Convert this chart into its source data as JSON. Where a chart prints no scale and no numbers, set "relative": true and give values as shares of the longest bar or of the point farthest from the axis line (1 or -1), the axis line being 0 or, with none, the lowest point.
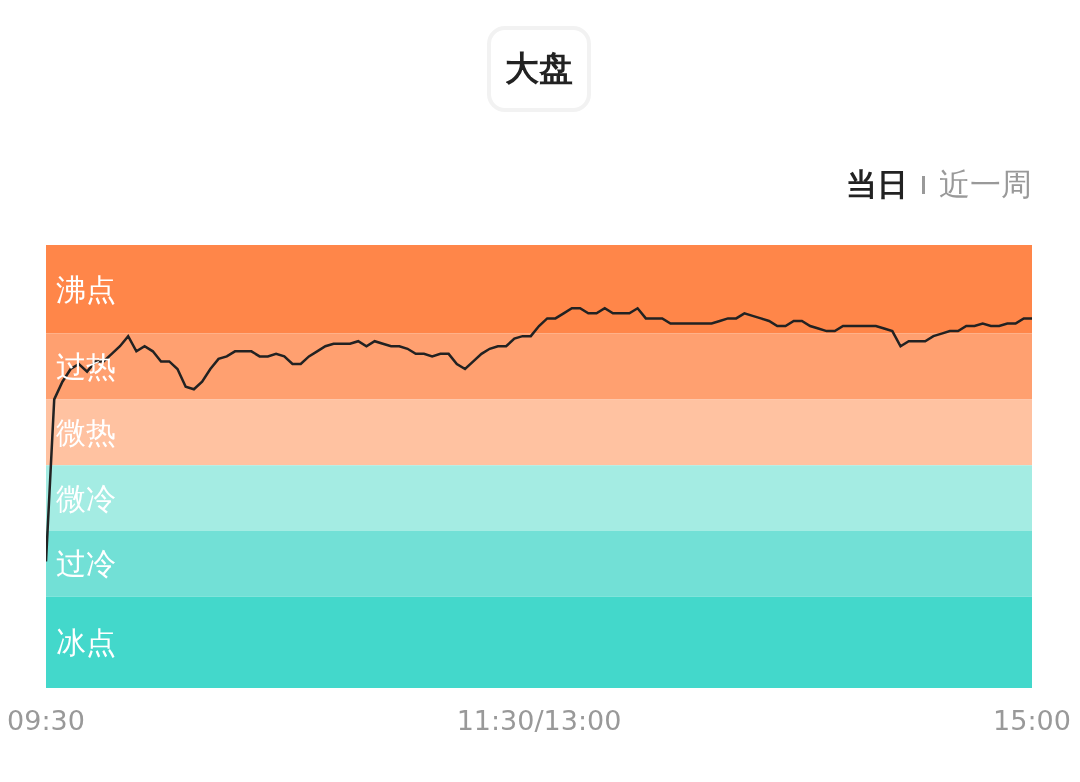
{
  "chart_data": {
    "type": "line",
    "title": "大盘",
    "relative": true,
    "annotations": [
      "当日",
      "近一周"
    ],
    "categories": [
      "09:30",
      null,
      null,
      null,
      null,
      null,
      null,
      null,
      null,
      null,
      null,
      null,
      null,
      null,
      null,
      null,
      null,
      null,
      null,
      null,
      null,
      null,
      null,
      null,
      null,
      null,
      null,
      null,
      null,
      null,
      null,
      null,
      null,
      null,
      null,
      null,
      null,
      null,
      null,
      null,
      null,
      null,
      null,
      null,
      null,
      null,
      null,
      null,
      null,
      null,
      null,
      null,
      null,
      null,
      null,
      null,
      null,
      null,
      null,
      null,
      "11:30/13:00",
      null,
      null,
      null,
      null,
      null,
      null,
      null,
      null,
      null,
      null,
      null,
      null,
      null,
      null,
      null,
      null,
      null,
      null,
      null,
      null,
      null,
      null,
      null,
      null,
      null,
      null,
      null,
      null,
      null,
      null,
      null,
      null,
      null,
      null,
      null,
      null,
      null,
      null,
      null,
      null,
      null,
      null,
      null,
      null,
      null,
      null,
      null,
      null,
      null,
      null,
      null,
      null,
      null,
      null,
      null,
      null,
      null,
      null,
      null,
      "15:00"
    ],
    "grid": false,
    "marker": "none",
    "line_style": "solid",
    "bands": [
      {
        "axis": "y",
        "from": 0.9,
        "to": 1.25,
        "label": "沸点",
        "color": "#ff8649"
      },
      {
        "axis": "y",
        "from": 0.64,
        "to": 0.9,
        "label": "过热",
        "color": "#ffa070"
      },
      {
        "axis": "y",
        "from": 0.38,
        "to": 0.64,
        "label": "微热",
        "color": "#ffc2a1"
      },
      {
        "axis": "y",
        "from": 0.12,
        "to": 0.38,
        "label": "微冷",
        "color": "#a4ece3"
      },
      {
        "axis": "y",
        "from": -0.14,
        "to": 0.12,
        "label": "过冷",
        "color": "#72e0d6"
      },
      {
        "axis": "y",
        "from": -0.5,
        "to": -0.14,
        "label": "冰点",
        "color": "#43d8cb"
      }
    ],
    "series": [
      {
        "color": "#222222",
        "values": [
          0,
          0.64,
          0.71,
          0.76,
          0.78,
          0.75,
          0.79,
          0.79,
          0.82,
          0.85,
          0.89,
          0.83,
          0.85,
          0.83,
          0.79,
          0.79,
          0.76,
          0.69,
          0.68,
          0.71,
          0.76,
          0.8,
          0.81,
          0.83,
          0.83,
          0.83,
          0.81,
          0.81,
          0.82,
          0.81,
          0.78,
          0.78,
          0.81,
          0.83,
          0.85,
          0.86,
          0.86,
          0.86,
          0.87,
          0.85,
          0.87,
          0.86,
          0.85,
          0.85,
          0.84,
          0.82,
          0.82,
          0.81,
          0.82,
          0.82,
          0.78,
          0.76,
          0.79,
          0.82,
          0.84,
          0.85,
          0.85,
          0.88,
          0.89,
          0.89,
          0.93,
          0.96,
          0.96,
          0.98,
          1,
          1,
          0.98,
          0.98,
          1,
          0.98,
          0.98,
          0.98,
          1,
          0.96,
          0.96,
          0.96,
          0.94,
          0.94,
          0.94,
          0.94,
          0.94,
          0.94,
          0.95,
          0.96,
          0.96,
          0.98,
          0.97,
          0.96,
          0.95,
          0.93,
          0.93,
          0.95,
          0.95,
          0.93,
          0.92,
          0.91,
          0.91,
          0.93,
          0.93,
          0.93,
          0.93,
          0.93,
          0.92,
          0.91,
          0.85,
          0.87,
          0.87,
          0.87,
          0.89,
          0.9,
          0.91,
          0.91,
          0.93,
          0.93,
          0.94,
          0.93,
          0.93,
          0.94,
          0.94,
          0.96,
          0.96
        ]
      }
    ]
  }
}
